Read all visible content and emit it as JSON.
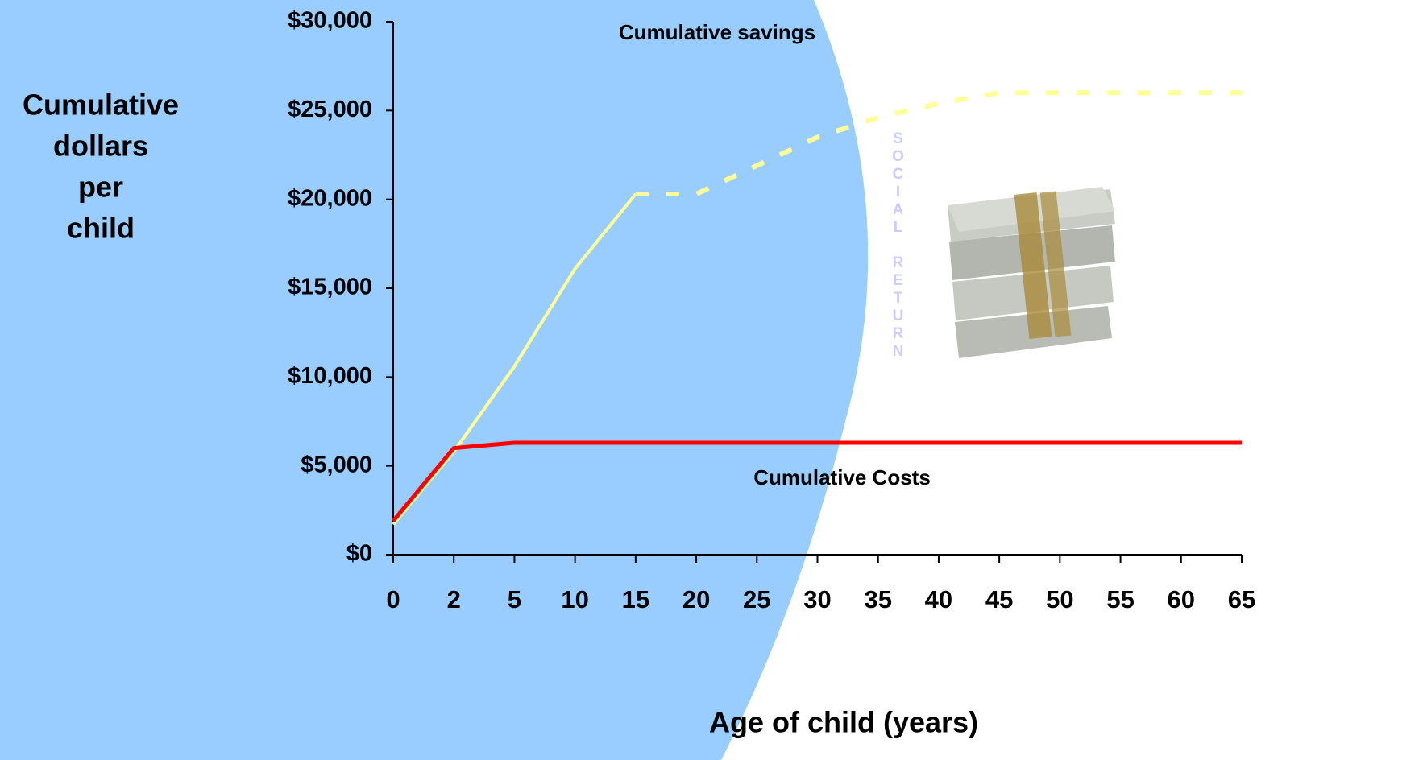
{
  "chart_data": {
    "type": "line",
    "y_label": [
      "Cumulative",
      "dollars",
      "per",
      "child"
    ],
    "x_label": "Age of child (years)",
    "annotations": [
      "Cumulative savings",
      "Cumulative Costs",
      "SOCIAL RETURN"
    ],
    "categories": [
      "0",
      "2",
      "5",
      "10",
      "15",
      "20",
      "25",
      "30",
      "35",
      "40",
      "45",
      "50",
      "55",
      "60",
      "65"
    ],
    "series": [
      {
        "color": "#ffff99",
        "dashed_from": 4,
        "values": [
          1700,
          5800,
          10600,
          16100,
          20300,
          20300,
          21900,
          23500,
          24600,
          25400,
          26000,
          26000,
          26000,
          26000,
          26000
        ]
      },
      {
        "color": "#ff0000",
        "values": [
          1900,
          6000,
          6300,
          6300,
          6300,
          6300,
          6300,
          6300,
          6300,
          6300,
          6300,
          6300,
          6300,
          6300,
          6300
        ]
      }
    ],
    "ylim": [
      0,
      30000
    ],
    "yticks": [
      {
        "value": 0,
        "label": "$0"
      },
      {
        "value": 5000,
        "label": "$5,000"
      },
      {
        "value": 10000,
        "label": "$10,000"
      },
      {
        "value": 15000,
        "label": "$15,000"
      },
      {
        "value": 20000,
        "label": "$20,000"
      },
      {
        "value": 25000,
        "label": "$25,000"
      },
      {
        "value": 30000,
        "label": "$30,000"
      }
    ]
  }
}
